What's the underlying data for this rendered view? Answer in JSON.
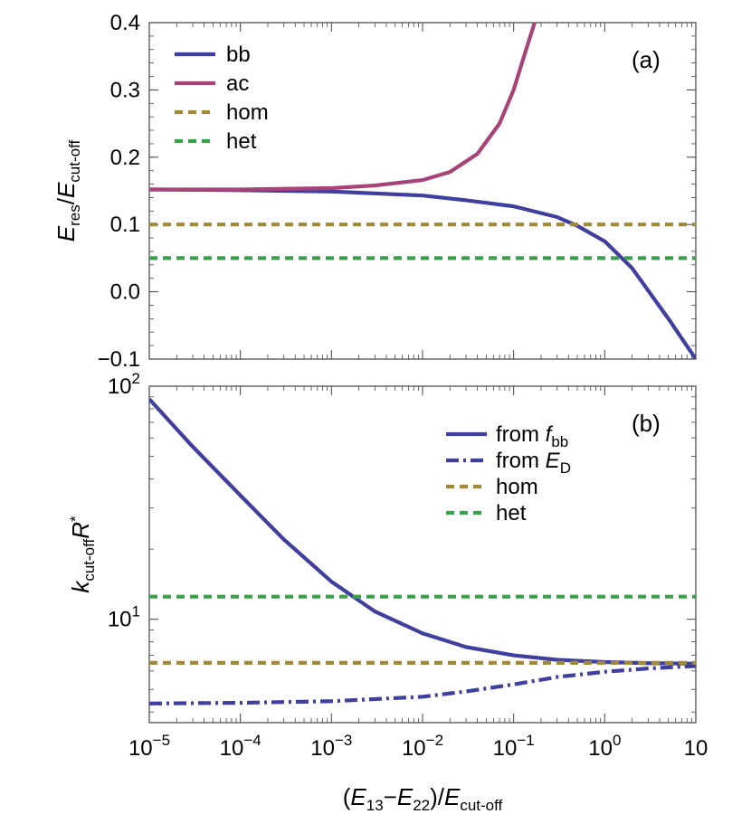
{
  "chart_data": [
    {
      "panel": "(a)",
      "type": "line",
      "ylabel": {
        "main": "E",
        "main_sub": "res",
        "den": "E",
        "den_sub": "cut-off"
      },
      "xscale": "log",
      "xlim": [
        1e-05,
        10
      ],
      "ylim": [
        -0.1,
        0.4
      ],
      "yticks": [
        -0.1,
        0.0,
        0.1,
        0.2,
        0.3,
        0.4
      ],
      "ytick_labels": [
        "−0.1",
        "0.0",
        "0.1",
        "0.2",
        "0.3",
        "0.4"
      ],
      "grid": false,
      "legend_position": "top-left",
      "series": [
        {
          "name": "bb",
          "style": "solid",
          "color": "#3f3f9f",
          "x": [
            1e-05,
            0.0001,
            0.001,
            0.01,
            0.03,
            0.1,
            0.3,
            0.5,
            1,
            2,
            5,
            10
          ],
          "y": [
            0.152,
            0.151,
            0.149,
            0.143,
            0.136,
            0.127,
            0.111,
            0.098,
            0.075,
            0.035,
            -0.04,
            -0.1
          ]
        },
        {
          "name": "ac",
          "style": "solid",
          "color": "#a8437a",
          "x": [
            1e-05,
            0.0001,
            0.001,
            0.003,
            0.01,
            0.02,
            0.04,
            0.07,
            0.1,
            0.13,
            0.17
          ],
          "y": [
            0.152,
            0.152,
            0.154,
            0.158,
            0.166,
            0.178,
            0.205,
            0.25,
            0.3,
            0.35,
            0.4
          ]
        },
        {
          "name": "hom",
          "style": "dashed",
          "color": "#a08a3a",
          "x": [
            1e-05,
            10
          ],
          "y": [
            0.1,
            0.1
          ]
        },
        {
          "name": "het",
          "style": "dashed",
          "color": "#3aa04a",
          "x": [
            1e-05,
            10
          ],
          "y": [
            0.05,
            0.05
          ]
        }
      ]
    },
    {
      "panel": "(b)",
      "type": "line",
      "ylabel": {
        "k": "k",
        "k_sub": "cut-off",
        "r": "R",
        "r_sup": "*"
      },
      "xlabel": {
        "e1": "E",
        "e1_sub": "13",
        "e2": "E",
        "e2_sub": "22",
        "den": "E",
        "den_sub": "cut-off"
      },
      "xscale": "log",
      "yscale": "log",
      "xlim": [
        1e-05,
        10
      ],
      "ylim": [
        3.6,
        100
      ],
      "xticks": [
        1e-05,
        0.0001,
        0.001,
        0.01,
        0.1,
        1,
        10
      ],
      "xtick_labels": [
        {
          "base": "10",
          "exp": "−5"
        },
        {
          "base": "10",
          "exp": "−4"
        },
        {
          "base": "10",
          "exp": "−3"
        },
        {
          "base": "10",
          "exp": "−2"
        },
        {
          "base": "10",
          "exp": "−1"
        },
        {
          "base": "10",
          "exp": "0"
        },
        {
          "base": "10",
          "exp": ""
        }
      ],
      "yticks_major": [
        10,
        100
      ],
      "ytick_labels": [
        {
          "base": "10",
          "exp": "1"
        },
        {
          "base": "10",
          "exp": "2"
        }
      ],
      "grid": false,
      "legend_position": "top-right",
      "series": [
        {
          "name": "from f_bb",
          "label_main": "from ",
          "label_var": "f",
          "label_sub": "bb",
          "style": "solid",
          "color": "#3f3f9f",
          "x": [
            1e-05,
            3e-05,
            0.0001,
            0.0003,
            0.001,
            0.003,
            0.01,
            0.03,
            0.1,
            0.3,
            1,
            3,
            10
          ],
          "y": [
            88,
            55,
            34,
            22,
            14.5,
            10.8,
            8.7,
            7.6,
            7.0,
            6.7,
            6.55,
            6.48,
            6.45
          ]
        },
        {
          "name": "from E_D",
          "label_main": "from ",
          "label_var": "E",
          "label_sub": "D",
          "style": "dashdot",
          "color": "#3f3f9f",
          "x": [
            1e-05,
            0.0001,
            0.001,
            0.01,
            0.03,
            0.1,
            0.3,
            1,
            3,
            10
          ],
          "y": [
            4.35,
            4.38,
            4.45,
            4.65,
            4.9,
            5.25,
            5.65,
            5.95,
            6.15,
            6.3
          ]
        },
        {
          "name": "hom",
          "style": "dashed",
          "color": "#a08a3a",
          "x": [
            1e-05,
            10
          ],
          "y": [
            6.5,
            6.5
          ]
        },
        {
          "name": "het",
          "style": "dashed",
          "color": "#3aa04a",
          "x": [
            1e-05,
            10
          ],
          "y": [
            12.5,
            12.5
          ]
        }
      ]
    }
  ]
}
